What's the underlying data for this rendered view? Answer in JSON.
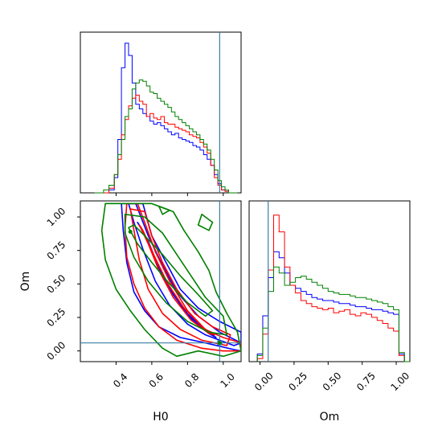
{
  "chart_data": {
    "type": "corner",
    "parameters": [
      "H0",
      "Om"
    ],
    "truth": {
      "H0": 0.98,
      "Om": 0.06
    },
    "truth_color": "#3a7ca5",
    "series": [
      {
        "color": "#0000ff"
      },
      {
        "color": "#ff0000"
      },
      {
        "color": "#008000"
      }
    ],
    "h0_hist": {
      "type": "histogram",
      "xlim": [
        0.2,
        1.1
      ],
      "ymax": 1.0,
      "bins": [
        0.28,
        0.33,
        0.36,
        0.39,
        0.41,
        0.43,
        0.45,
        0.47,
        0.49,
        0.51,
        0.53,
        0.55,
        0.57,
        0.59,
        0.61,
        0.63,
        0.65,
        0.67,
        0.69,
        0.71,
        0.73,
        0.75,
        0.77,
        0.79,
        0.81,
        0.83,
        0.85,
        0.87,
        0.89,
        0.91,
        0.93,
        0.95,
        0.97,
        0.99,
        1.01,
        1.03,
        1.05,
        1.08
      ],
      "counts": {
        "blue": [
          0.0,
          0.0,
          0.02,
          0.1,
          0.35,
          0.82,
          0.98,
          0.9,
          0.72,
          0.58,
          0.55,
          0.52,
          0.5,
          0.47,
          0.45,
          0.46,
          0.44,
          0.42,
          0.4,
          0.38,
          0.39,
          0.36,
          0.35,
          0.34,
          0.33,
          0.31,
          0.3,
          0.28,
          0.25,
          0.22,
          0.18,
          0.12,
          0.06,
          0.02,
          0.01,
          0.0,
          0.0
        ],
        "red": [
          0.0,
          0.0,
          0.03,
          0.12,
          0.22,
          0.38,
          0.48,
          0.57,
          0.62,
          0.64,
          0.6,
          0.58,
          0.5,
          0.52,
          0.49,
          0.48,
          0.5,
          0.46,
          0.45,
          0.45,
          0.43,
          0.42,
          0.41,
          0.4,
          0.38,
          0.37,
          0.36,
          0.33,
          0.3,
          0.26,
          0.18,
          0.1,
          0.05,
          0.02,
          0.01,
          0.0,
          0.0
        ],
        "green": [
          0.0,
          0.02,
          0.05,
          0.12,
          0.25,
          0.35,
          0.5,
          0.55,
          0.68,
          0.72,
          0.74,
          0.73,
          0.7,
          0.66,
          0.65,
          0.62,
          0.6,
          0.58,
          0.56,
          0.53,
          0.5,
          0.48,
          0.46,
          0.44,
          0.42,
          0.4,
          0.38,
          0.35,
          0.32,
          0.28,
          0.22,
          0.15,
          0.08,
          0.04,
          0.02,
          0.0,
          0.0
        ]
      }
    },
    "om_hist": {
      "type": "histogram",
      "xlim": [
        -0.08,
        1.1
      ],
      "xticks": [
        0.0,
        0.25,
        0.5,
        0.75,
        1.0
      ],
      "xtick_labels": [
        "0.00",
        "0.25",
        "0.50",
        "0.75",
        "1.00"
      ],
      "xlabel": "Om",
      "ymax": 1.0,
      "bins": [
        -0.02,
        0.02,
        0.06,
        0.1,
        0.14,
        0.18,
        0.22,
        0.26,
        0.3,
        0.34,
        0.38,
        0.42,
        0.46,
        0.5,
        0.54,
        0.58,
        0.62,
        0.66,
        0.7,
        0.74,
        0.78,
        0.82,
        0.86,
        0.9,
        0.94,
        0.98,
        1.02,
        1.06,
        1.1
      ],
      "counts": {
        "blue": [
          0.05,
          0.3,
          0.55,
          0.72,
          0.68,
          0.58,
          0.5,
          0.48,
          0.46,
          0.44,
          0.42,
          0.41,
          0.4,
          0.4,
          0.39,
          0.38,
          0.38,
          0.37,
          0.36,
          0.36,
          0.35,
          0.34,
          0.34,
          0.33,
          0.32,
          0.31,
          0.05,
          0.0
        ],
        "red": [
          0.02,
          0.18,
          0.6,
          0.96,
          0.85,
          0.62,
          0.5,
          0.45,
          0.4,
          0.38,
          0.36,
          0.35,
          0.34,
          0.35,
          0.32,
          0.33,
          0.34,
          0.31,
          0.3,
          0.32,
          0.31,
          0.29,
          0.27,
          0.25,
          0.22,
          0.2,
          0.04,
          0.0
        ],
        "green": [
          0.04,
          0.22,
          0.46,
          0.62,
          0.58,
          0.5,
          0.52,
          0.55,
          0.56,
          0.54,
          0.52,
          0.5,
          0.48,
          0.46,
          0.45,
          0.44,
          0.44,
          0.43,
          0.42,
          0.42,
          0.41,
          0.4,
          0.39,
          0.38,
          0.36,
          0.34,
          0.06,
          0.0
        ]
      }
    },
    "joint": {
      "type": "contour",
      "xlim": [
        0.2,
        1.1
      ],
      "ylim": [
        -0.08,
        1.12
      ],
      "xticks": [
        0.4,
        0.6,
        0.8,
        1.0
      ],
      "xtick_labels": [
        "0.4",
        "0.6",
        "0.8",
        "1.0"
      ],
      "yticks": [
        0.0,
        0.25,
        0.5,
        0.75,
        1.0
      ],
      "ytick_labels": [
        "0.00",
        "0.25",
        "0.50",
        "0.75",
        "1.00"
      ],
      "xlabel": "H0",
      "ylabel": "Om",
      "levels": [
        {
          "series": 0,
          "points": [
            [
              0.52,
              0.96
            ],
            [
              0.58,
              0.82
            ],
            [
              0.64,
              0.62
            ],
            [
              0.72,
              0.42
            ],
            [
              0.82,
              0.24
            ],
            [
              0.92,
              0.13
            ],
            [
              0.96,
              0.1
            ],
            [
              0.9,
              0.16
            ],
            [
              0.78,
              0.3
            ],
            [
              0.68,
              0.52
            ],
            [
              0.6,
              0.74
            ],
            [
              0.54,
              0.92
            ]
          ]
        },
        {
          "series": 0,
          "points": [
            [
              0.47,
              1.1
            ],
            [
              0.5,
              0.96
            ],
            [
              0.55,
              0.76
            ],
            [
              0.62,
              0.52
            ],
            [
              0.7,
              0.34
            ],
            [
              0.8,
              0.2
            ],
            [
              0.9,
              0.12
            ],
            [
              1.06,
              0.04
            ],
            [
              1.1,
              0.06
            ],
            [
              0.98,
              0.14
            ],
            [
              0.86,
              0.26
            ],
            [
              0.74,
              0.44
            ],
            [
              0.66,
              0.64
            ],
            [
              0.58,
              0.86
            ],
            [
              0.51,
              1.1
            ]
          ]
        },
        {
          "series": 0,
          "points": [
            [
              0.43,
              1.1
            ],
            [
              0.44,
              0.9
            ],
            [
              0.46,
              0.66
            ],
            [
              0.5,
              0.44
            ],
            [
              0.56,
              0.3
            ],
            [
              0.64,
              0.18
            ],
            [
              0.76,
              0.1
            ],
            [
              0.9,
              0.06
            ],
            [
              1.06,
              0.01
            ],
            [
              1.1,
              0.0
            ],
            [
              1.1,
              0.14
            ],
            [
              0.98,
              0.22
            ],
            [
              0.86,
              0.32
            ],
            [
              0.76,
              0.46
            ],
            [
              0.68,
              0.66
            ],
            [
              0.6,
              0.86
            ],
            [
              0.55,
              1.1
            ]
          ]
        },
        {
          "series": 1,
          "points": [
            [
              0.53,
              0.94
            ],
            [
              0.58,
              0.8
            ],
            [
              0.64,
              0.6
            ],
            [
              0.72,
              0.4
            ],
            [
              0.82,
              0.23
            ],
            [
              0.92,
              0.13
            ],
            [
              0.95,
              0.12
            ],
            [
              0.89,
              0.17
            ],
            [
              0.78,
              0.32
            ],
            [
              0.69,
              0.5
            ],
            [
              0.61,
              0.72
            ],
            [
              0.55,
              0.9
            ]
          ]
        },
        {
          "series": 1,
          "points": [
            [
              0.48,
              1.06
            ],
            [
              0.5,
              0.9
            ],
            [
              0.53,
              0.68
            ],
            [
              0.58,
              0.46
            ],
            [
              0.66,
              0.28
            ],
            [
              0.76,
              0.16
            ],
            [
              0.88,
              0.08
            ],
            [
              1.02,
              0.04
            ],
            [
              1.04,
              0.12
            ],
            [
              0.94,
              0.18
            ],
            [
              0.84,
              0.28
            ],
            [
              0.74,
              0.46
            ],
            [
              0.66,
              0.66
            ],
            [
              0.6,
              0.86
            ],
            [
              0.56,
              1.04
            ]
          ]
        },
        {
          "series": 1,
          "points": [
            [
              0.46,
              1.1
            ],
            [
              0.45,
              0.92
            ],
            [
              0.46,
              0.7
            ],
            [
              0.5,
              0.5
            ],
            [
              0.56,
              0.32
            ],
            [
              0.64,
              0.18
            ],
            [
              0.74,
              0.08
            ],
            [
              0.88,
              0.02
            ],
            [
              1.0,
              0.0
            ],
            [
              1.1,
              0.0
            ],
            [
              1.1,
              0.06
            ],
            [
              1.0,
              0.1
            ],
            [
              0.9,
              0.16
            ],
            [
              0.8,
              0.3
            ],
            [
              0.7,
              0.52
            ],
            [
              0.62,
              0.74
            ],
            [
              0.56,
              0.96
            ],
            [
              0.52,
              1.1
            ]
          ]
        },
        {
          "series": 2,
          "points": [
            [
              0.47,
              0.92
            ],
            [
              0.52,
              0.8
            ],
            [
              0.6,
              0.66
            ],
            [
              0.7,
              0.5
            ],
            [
              0.8,
              0.36
            ],
            [
              0.9,
              0.26
            ],
            [
              0.94,
              0.3
            ],
            [
              0.86,
              0.42
            ],
            [
              0.76,
              0.56
            ],
            [
              0.66,
              0.72
            ],
            [
              0.56,
              0.86
            ],
            [
              0.5,
              0.94
            ]
          ]
        },
        {
          "series": 2,
          "points": [
            [
              0.45,
              1.02
            ],
            [
              0.45,
              0.88
            ],
            [
              0.5,
              0.7
            ],
            [
              0.58,
              0.52
            ],
            [
              0.68,
              0.36
            ],
            [
              0.8,
              0.22
            ],
            [
              0.92,
              0.14
            ],
            [
              1.02,
              0.12
            ],
            [
              1.0,
              0.26
            ],
            [
              0.9,
              0.4
            ],
            [
              0.82,
              0.56
            ],
            [
              0.74,
              0.72
            ],
            [
              0.66,
              0.88
            ],
            [
              0.56,
              1.0
            ]
          ]
        },
        {
          "series": 2,
          "points": [
            [
              0.34,
              1.1
            ],
            [
              0.32,
              0.9
            ],
            [
              0.34,
              0.68
            ],
            [
              0.4,
              0.46
            ],
            [
              0.48,
              0.3
            ],
            [
              0.56,
              0.16
            ],
            [
              0.66,
              0.02
            ],
            [
              0.74,
              -0.04
            ],
            [
              0.86,
              0.0
            ],
            [
              1.0,
              -0.04
            ],
            [
              1.1,
              0.0
            ],
            [
              1.08,
              0.14
            ],
            [
              1.02,
              0.28
            ],
            [
              0.96,
              0.44
            ],
            [
              0.92,
              0.6
            ],
            [
              0.86,
              0.74
            ],
            [
              0.78,
              0.9
            ],
            [
              0.72,
              1.04
            ],
            [
              0.6,
              1.1
            ]
          ]
        },
        {
          "series": 2,
          "points": [
            [
              0.88,
              1.02
            ],
            [
              0.94,
              0.96
            ],
            [
              0.92,
              0.9
            ],
            [
              0.86,
              0.94
            ]
          ]
        },
        {
          "series": 2,
          "points": [
            [
              0.64,
              1.08
            ],
            [
              0.7,
              1.05
            ],
            [
              0.66,
              1.02
            ]
          ]
        }
      ],
      "markers": [
        {
          "series": 2,
          "x": 0.48,
          "y": 0.89
        },
        {
          "series": 2,
          "x": 0.98,
          "y": 0.06
        }
      ]
    }
  }
}
